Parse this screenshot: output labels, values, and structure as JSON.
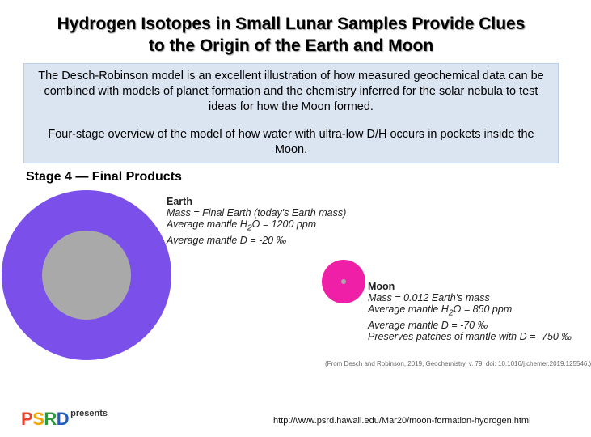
{
  "title": {
    "line1": "Hydrogen Isotopes in Small Lunar Samples Provide Clues",
    "line2": "to the Origin of the Earth and Moon"
  },
  "info": {
    "para1": "The Desch-Robinson model is an excellent illustration of how measured geochemical data can be combined with models of planet formation and the chemistry inferred for the solar nebula to test ideas for how the Moon formed.",
    "para2": "Four-stage overview of the model of how water with ultra-low D/H occurs in pockets inside the Moon."
  },
  "stage_heading": "Stage 4 — Final Products",
  "earth": {
    "label": "Earth",
    "mass": "Mass = Final Earth (today's Earth mass)",
    "water_prefix": "Average mantle H",
    "water_sub": "2",
    "water_suffix": "O = 1200 ppm",
    "d": "Average mantle D = -20 ‰",
    "colors": {
      "mantle": "#7b4fea",
      "core": "#a9a9a9"
    }
  },
  "moon": {
    "label": "Moon",
    "mass": "Mass = 0.012 Earth's mass",
    "water_prefix": "Average mantle H",
    "water_sub": "2",
    "water_suffix": "O = 850 ppm",
    "d": "Average mantle D = -70 ‰",
    "patches": "Preserves patches of mantle with D = -750 ‰",
    "colors": {
      "mantle": "#f01fa8",
      "core": "#a9a9a9"
    }
  },
  "citation": "(From Desch and Robinson, 2019, Geochemistry, v. 79, doi: 10.1016/j.chemer.2019.125546.)",
  "logo": {
    "letters": [
      "P",
      "S",
      "R",
      "D"
    ],
    "letter_colors": [
      "#e8402a",
      "#f2a500",
      "#2e9a3e",
      "#1f5fbf"
    ],
    "presents": "presents"
  },
  "url": "http://www.psrd.hawaii.edu/Mar20/moon-formation-hydrogen.html"
}
